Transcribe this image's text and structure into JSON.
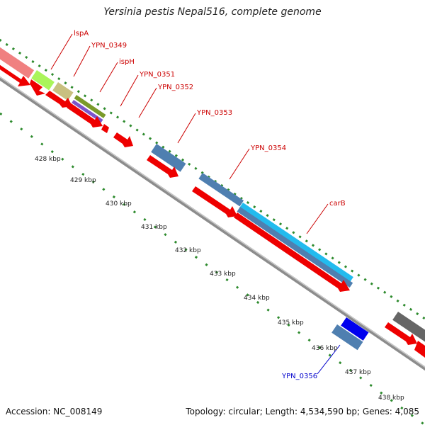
{
  "title": "Yersinia pestis Nepal516, complete genome",
  "footer": {
    "accession": "Accession: NC_008149",
    "topology": "Topology: circular; Length: 4,534,590 bp; Genes: 4,085"
  },
  "colors": {
    "tick": "#2e8b2e",
    "backbone": "#888888",
    "cds_red": "#ee0000",
    "label_red": "#cc0000",
    "label_blue": "#0000cc"
  },
  "scale_labels": [
    "428 kbp",
    "429 kbp",
    "430 kbp",
    "431 kbp",
    "432 kbp",
    "433 kbp",
    "434 kbp",
    "435 kbp",
    "436 kbp",
    "437 kbp",
    "438 kbp"
  ],
  "gene_labels": [
    {
      "text": "lspA",
      "color": "#cc0000"
    },
    {
      "text": "YPN_0349",
      "color": "#cc0000"
    },
    {
      "text": "ispH",
      "color": "#cc0000"
    },
    {
      "text": "YPN_0351",
      "color": "#cc0000"
    },
    {
      "text": "YPN_0352",
      "color": "#cc0000"
    },
    {
      "text": "YPN_0353",
      "color": "#cc0000"
    },
    {
      "text": "YPN_0354",
      "color": "#cc0000"
    },
    {
      "text": "carB",
      "color": "#cc0000"
    },
    {
      "text": "YPN_0356",
      "color": "#0000cc"
    }
  ]
}
